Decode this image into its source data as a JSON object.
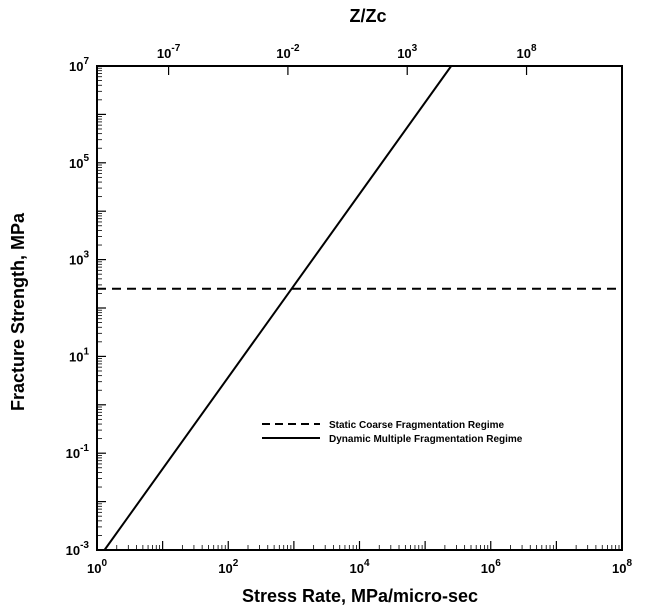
{
  "chart_data": {
    "type": "line",
    "title": "",
    "xlabel": "Stress Rate, MPa/micro-sec",
    "ylabel": "Fracture Strength, MPa",
    "top_xlabel": "Z/Zc",
    "x_scale": "log",
    "y_scale": "log",
    "xlim": [
      1,
      100000000
    ],
    "ylim": [
      0.001,
      10000000
    ],
    "top_xlim": [
      1e-10,
      1000000000000.0
    ],
    "x_tick_labels": [
      {
        "base": "10",
        "exp": "0",
        "value": 1
      },
      {
        "base": "10",
        "exp": "2",
        "value": 100
      },
      {
        "base": "10",
        "exp": "4",
        "value": 10000
      },
      {
        "base": "10",
        "exp": "6",
        "value": 1000000
      },
      {
        "base": "10",
        "exp": "8",
        "value": 100000000
      }
    ],
    "y_tick_labels": [
      {
        "base": "10",
        "exp": "-3",
        "value": 0.001
      },
      {
        "base": "10",
        "exp": "-1",
        "value": 0.1
      },
      {
        "base": "10",
        "exp": "1",
        "value": 10
      },
      {
        "base": "10",
        "exp": "3",
        "value": 1000
      },
      {
        "base": "10",
        "exp": "5",
        "value": 100000
      },
      {
        "base": "10",
        "exp": "7",
        "value": 10000000
      }
    ],
    "top_tick_labels": [
      {
        "base": "10",
        "exp": "-7",
        "value": 1e-07
      },
      {
        "base": "10",
        "exp": "-2",
        "value": 0.01
      },
      {
        "base": "10",
        "exp": "3",
        "value": 1000
      },
      {
        "base": "10",
        "exp": "8",
        "value": 100000000
      }
    ],
    "series": [
      {
        "name": "Static Coarse Fragmentation Regime",
        "style": "dashed",
        "x": [
          1,
          100000000
        ],
        "y": [
          250,
          250
        ]
      },
      {
        "name": "Dynamic Multiple Fragmentation Regime",
        "style": "solid",
        "x": [
          1.3,
          250000
        ],
        "y": [
          0.001,
          10000000
        ]
      }
    ],
    "legend_position": "center-right",
    "grid": false
  }
}
